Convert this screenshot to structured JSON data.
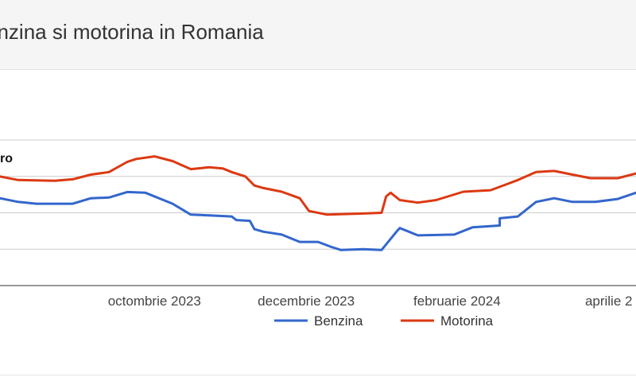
{
  "header": {
    "title": "enzina si motorina in Romania"
  },
  "chart_data": {
    "type": "line",
    "title": "enzina si motorina in Romania",
    "ylabel_fragment": "ro",
    "xlabel": "",
    "x_ticks": [
      {
        "label": "octombrie 2023",
        "x": 2023.75
      },
      {
        "label": "decembrie 2023",
        "x": 2023.917
      },
      {
        "label": "februarie 2024",
        "x": 2024.083
      },
      {
        "label": "aprilie 2",
        "x": 2024.25
      }
    ],
    "xlim": [
      2023.58,
      2024.28
    ],
    "ylim": [
      0,
      4
    ],
    "y_gridlines": [
      0,
      1,
      2,
      3,
      4
    ],
    "grid": true,
    "legend_position": "bottom",
    "series": [
      {
        "name": "Benzina",
        "color": "#3366cc",
        "points": [
          [
            2023.58,
            2.4
          ],
          [
            2023.6,
            2.3
          ],
          [
            2023.62,
            2.25
          ],
          [
            2023.66,
            2.25
          ],
          [
            2023.68,
            2.4
          ],
          [
            2023.7,
            2.42
          ],
          [
            2023.72,
            2.57
          ],
          [
            2023.74,
            2.55
          ],
          [
            2023.77,
            2.25
          ],
          [
            2023.79,
            1.95
          ],
          [
            2023.81,
            1.93
          ],
          [
            2023.835,
            1.9
          ],
          [
            2023.84,
            1.8
          ],
          [
            2023.855,
            1.78
          ],
          [
            2023.86,
            1.55
          ],
          [
            2023.87,
            1.48
          ],
          [
            2023.89,
            1.4
          ],
          [
            2023.91,
            1.2
          ],
          [
            2023.93,
            1.2
          ],
          [
            2023.945,
            1.06
          ],
          [
            2023.955,
            0.98
          ],
          [
            2023.98,
            1.0
          ],
          [
            2024.0,
            0.98
          ],
          [
            2024.017,
            1.5
          ],
          [
            2024.02,
            1.58
          ],
          [
            2024.04,
            1.38
          ],
          [
            2024.08,
            1.4
          ],
          [
            2024.1,
            1.6
          ],
          [
            2024.13,
            1.65
          ],
          [
            2024.13,
            1.85
          ],
          [
            2024.15,
            1.9
          ],
          [
            2024.17,
            2.3
          ],
          [
            2024.19,
            2.4
          ],
          [
            2024.21,
            2.3
          ],
          [
            2024.235,
            2.3
          ],
          [
            2024.26,
            2.38
          ],
          [
            2024.28,
            2.55
          ]
        ]
      },
      {
        "name": "Motorina",
        "color": "#dc3912",
        "points": [
          [
            2023.58,
            3.0
          ],
          [
            2023.6,
            2.9
          ],
          [
            2023.64,
            2.88
          ],
          [
            2023.66,
            2.92
          ],
          [
            2023.68,
            3.05
          ],
          [
            2023.7,
            3.12
          ],
          [
            2023.72,
            3.4
          ],
          [
            2023.73,
            3.48
          ],
          [
            2023.75,
            3.55
          ],
          [
            2023.77,
            3.42
          ],
          [
            2023.79,
            3.2
          ],
          [
            2023.81,
            3.25
          ],
          [
            2023.825,
            3.22
          ],
          [
            2023.835,
            3.12
          ],
          [
            2023.85,
            3.0
          ],
          [
            2023.86,
            2.75
          ],
          [
            2023.87,
            2.68
          ],
          [
            2023.89,
            2.58
          ],
          [
            2023.91,
            2.4
          ],
          [
            2023.92,
            2.05
          ],
          [
            2023.94,
            1.95
          ],
          [
            2023.98,
            1.98
          ],
          [
            2024.0,
            2.0
          ],
          [
            2024.005,
            2.45
          ],
          [
            2024.01,
            2.55
          ],
          [
            2024.02,
            2.35
          ],
          [
            2024.04,
            2.28
          ],
          [
            2024.06,
            2.35
          ],
          [
            2024.09,
            2.58
          ],
          [
            2024.12,
            2.62
          ],
          [
            2024.15,
            2.9
          ],
          [
            2024.17,
            3.12
          ],
          [
            2024.19,
            3.15
          ],
          [
            2024.21,
            3.05
          ],
          [
            2024.23,
            2.95
          ],
          [
            2024.26,
            2.95
          ],
          [
            2024.28,
            3.08
          ]
        ]
      }
    ]
  }
}
